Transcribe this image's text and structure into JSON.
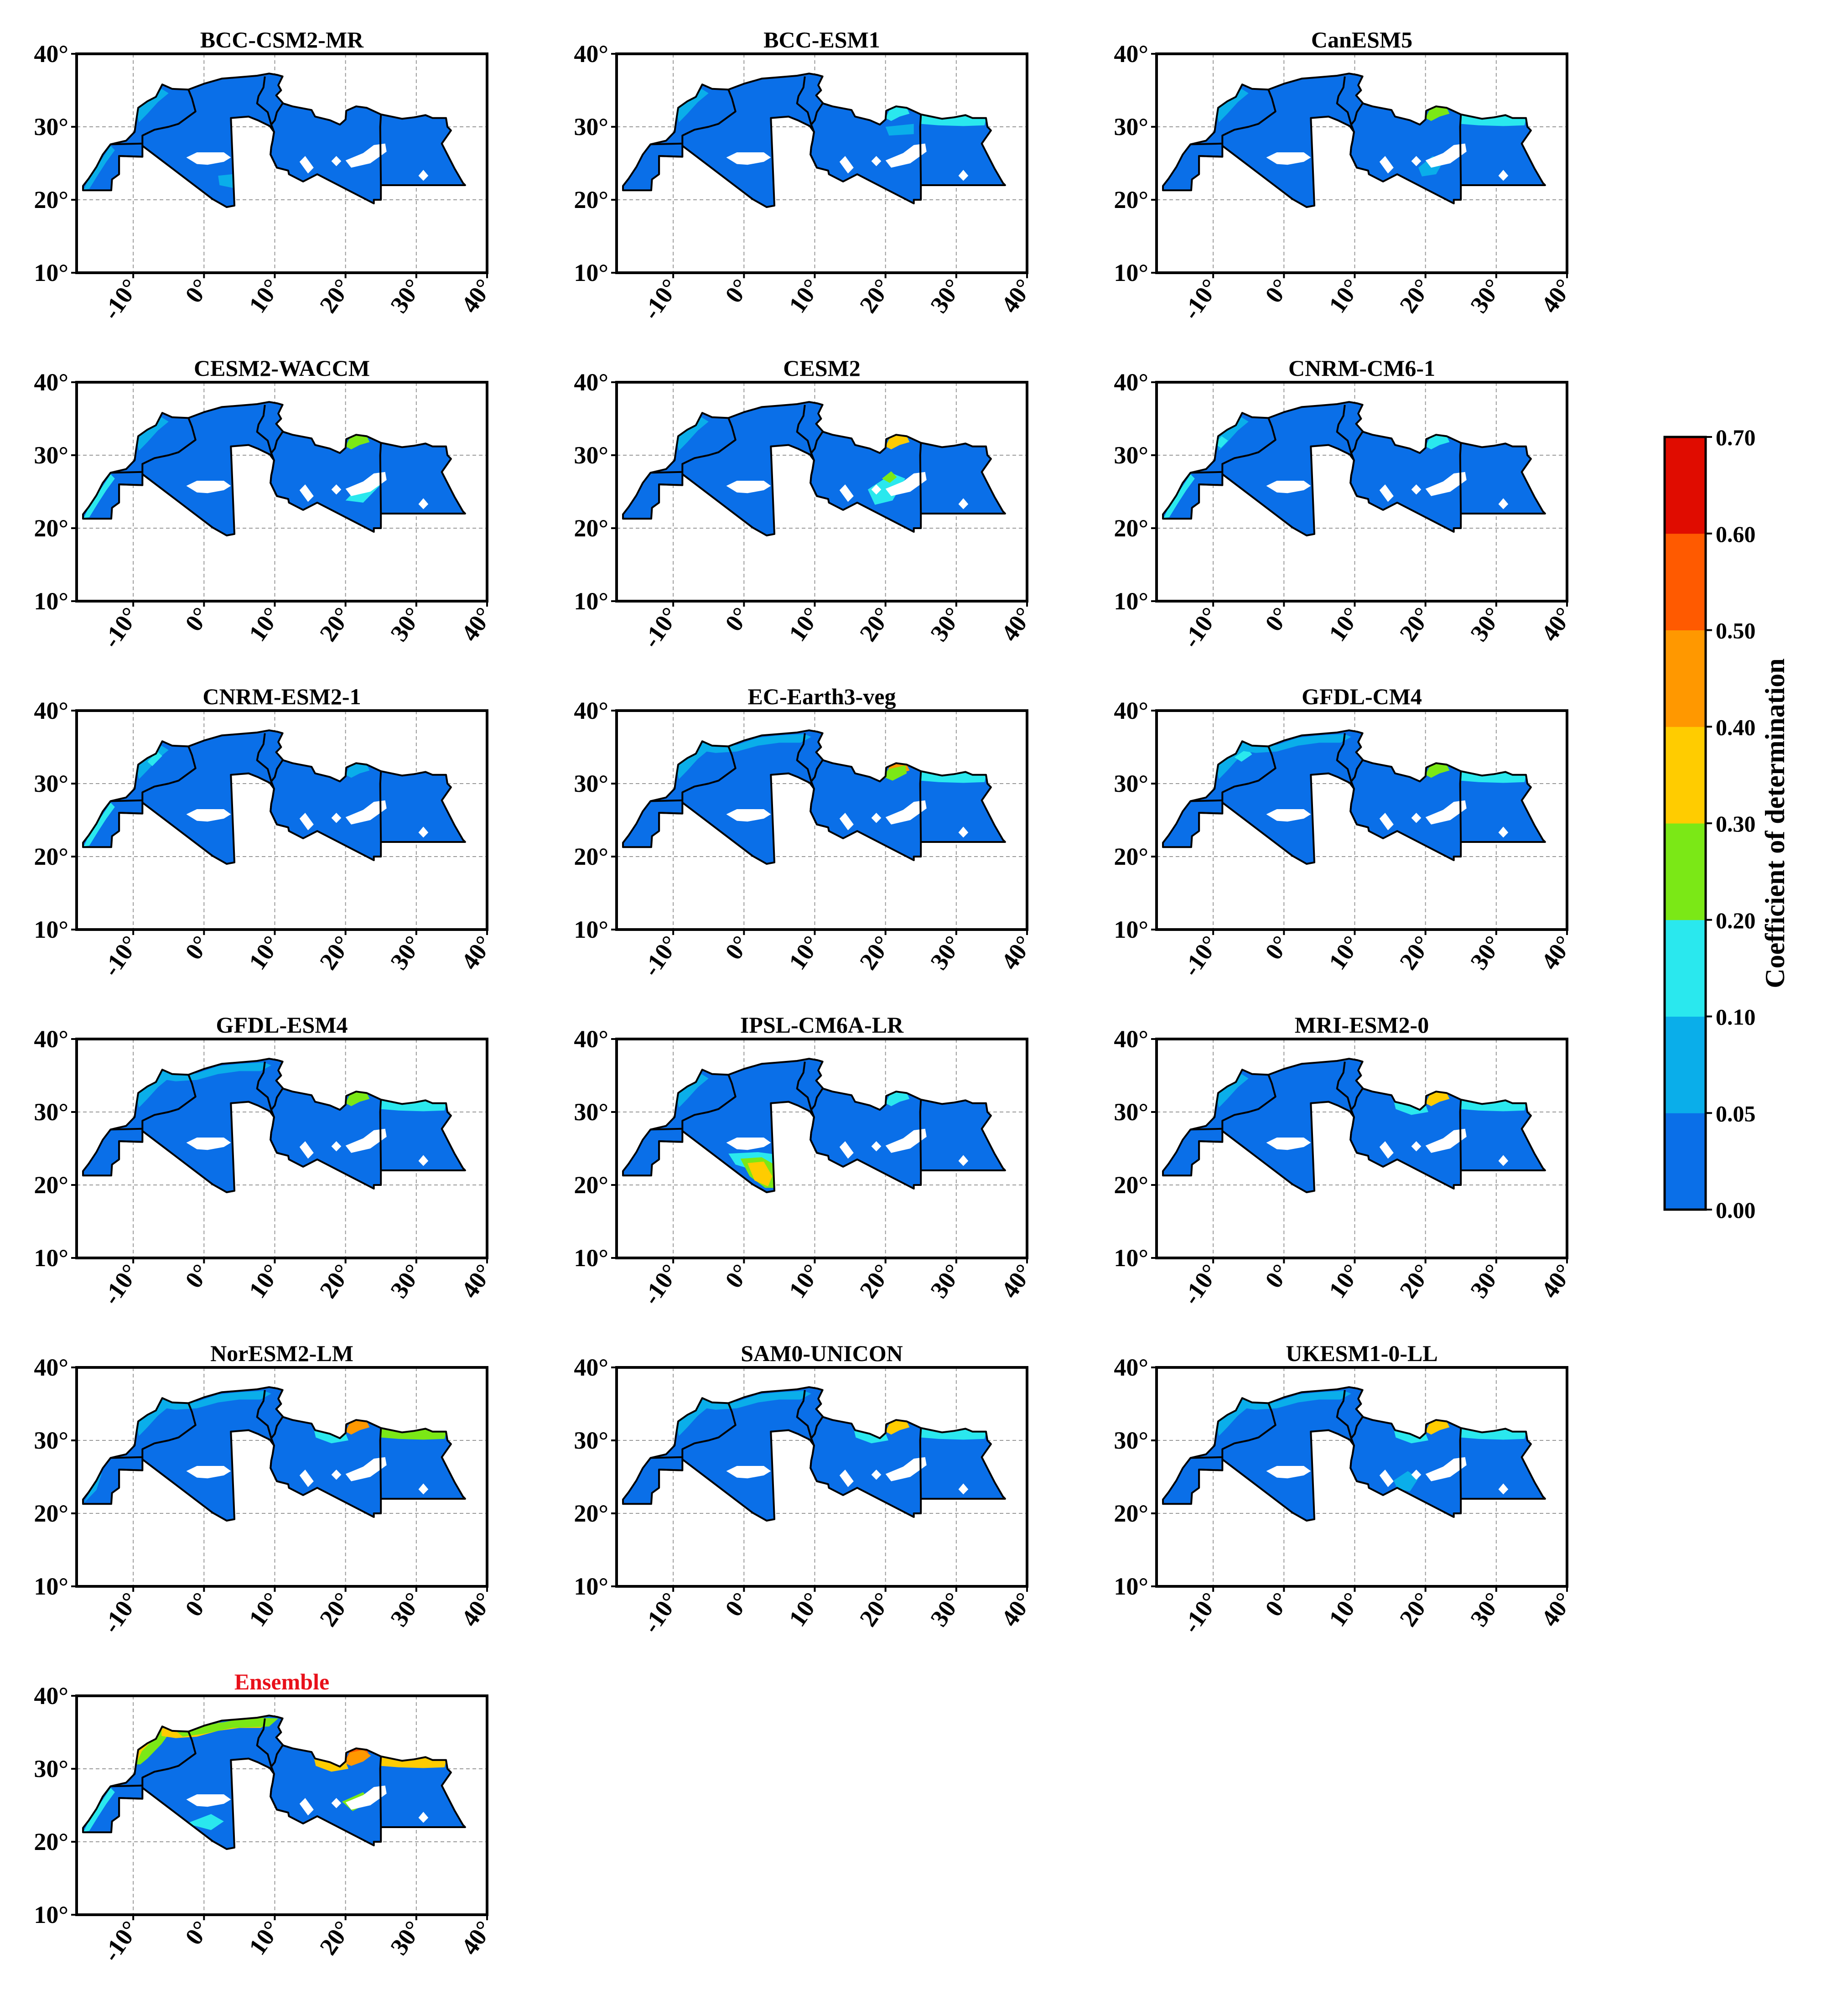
{
  "figure": {
    "panels": [
      {
        "title": "BCC-CSM2-MR"
      },
      {
        "title": "BCC-ESM1"
      },
      {
        "title": "CanESM5"
      },
      {
        "title": "CESM2-WACCM"
      },
      {
        "title": "CESM2"
      },
      {
        "title": "CNRM-CM6-1"
      },
      {
        "title": "CNRM-ESM2-1"
      },
      {
        "title": "EC-Earth3-veg"
      },
      {
        "title": "GFDL-CM4"
      },
      {
        "title": "GFDL-ESM4"
      },
      {
        "title": "IPSL-CM6A-LR"
      },
      {
        "title": "MRI-ESM2-0"
      },
      {
        "title": "NorESM2-LM"
      },
      {
        "title": "SAM0-UNICON"
      },
      {
        "title": "UKESM1-0-LL"
      },
      {
        "title": "Ensemble",
        "title_color": "#e8101a"
      }
    ],
    "x_ticks": [
      "-10°",
      "0°",
      "10°",
      "20°",
      "30°",
      "40°"
    ],
    "y_ticks": [
      "40°",
      "30°",
      "20°",
      "10°"
    ],
    "x_tick_values": [
      -10,
      0,
      10,
      20,
      30,
      40
    ],
    "y_tick_values": [
      40,
      30,
      20,
      10
    ],
    "lon_range": [
      -18,
      40
    ],
    "lat_range": [
      10,
      40
    ],
    "grid": "dashed",
    "region": "North Africa",
    "colors": {
      "frame": "#000000",
      "grid": "#9a9a9a",
      "background": "#ffffff",
      "missing": "#ffffff"
    }
  },
  "colorbar": {
    "label": "Coefficient of determination",
    "tick_labels": [
      "0.00",
      "0.05",
      "0.10",
      "0.20",
      "0.30",
      "0.40",
      "0.50",
      "0.60",
      "0.70"
    ],
    "bounds": [
      0.0,
      0.05,
      0.1,
      0.2,
      0.3,
      0.4,
      0.5,
      0.6,
      0.7
    ],
    "colors": [
      "#0a6fe8",
      "#0aaeea",
      "#2ae8ee",
      "#7be816",
      "#ffcc00",
      "#ff9800",
      "#ff5a00",
      "#e00c00"
    ]
  }
}
